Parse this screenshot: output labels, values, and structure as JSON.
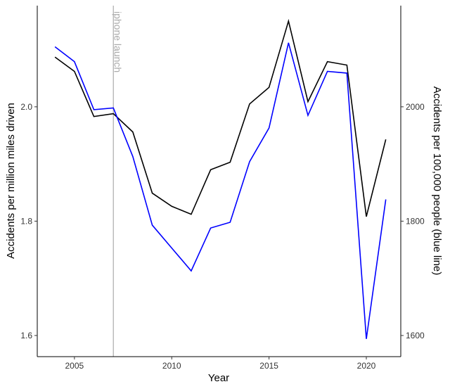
{
  "chart_data": {
    "type": "line",
    "x_label": "Year",
    "y_label": "Accidents per million miles driven",
    "y2_label": "Accidents per 100,000 people (blue line)",
    "x": [
      2004,
      2005,
      2006,
      2007,
      2008,
      2009,
      2010,
      2011,
      2012,
      2013,
      2014,
      2015,
      2016,
      2017,
      2018,
      2019,
      2020,
      2021
    ],
    "series": [
      {
        "name": "Accidents per million miles driven",
        "color": "#000000",
        "axis": "y",
        "values": [
          2.087,
          2.062,
          1.983,
          1.988,
          1.956,
          1.849,
          1.826,
          1.812,
          1.89,
          1.903,
          2.005,
          2.034,
          2.15,
          2.009,
          2.079,
          2.073,
          1.808,
          1.943
        ]
      },
      {
        "name": "Accidents per 100,000 people",
        "color": "#0000ff",
        "axis": "y2",
        "values": [
          2105,
          2079,
          1995,
          1998,
          1913,
          1793,
          1753,
          1713,
          1788,
          1798,
          1904,
          1963,
          2112,
          1985,
          2062,
          2059,
          1594,
          1838
        ]
      }
    ],
    "xlim": [
      2003.09,
      2021.77
    ],
    "xticks": [
      2005,
      2010,
      2015,
      2020
    ],
    "ylim": [
      1.563,
      2.177
    ],
    "yticks": [
      1.6,
      1.8,
      {
        "value": 2,
        "label": "2.0"
      }
    ],
    "y2lim": [
      1563,
      2177
    ],
    "y2ticks": [
      1600,
      1800,
      2000
    ],
    "grid": false,
    "annotations": [
      {
        "text": "iphone launch",
        "x": 2007,
        "color": "#aaaaaa"
      }
    ]
  }
}
